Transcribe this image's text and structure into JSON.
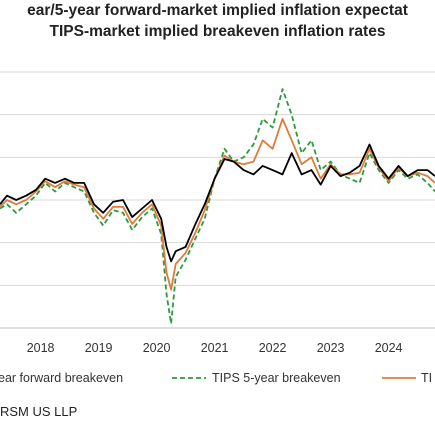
{
  "chart_data": {
    "type": "line",
    "title_lines": [
      "ear/5-year forward-market implied inflation expectat",
      "TIPS-market implied breakeven inflation rates"
    ],
    "xlabel": "",
    "ylabel": "",
    "x_tick_labels": [
      "2018",
      "2019",
      "2020",
      "2021",
      "2022",
      "2023",
      "2024"
    ],
    "x_ticks": [
      2018,
      2019,
      2020,
      2021,
      2022,
      2023,
      2024
    ],
    "xlim": [
      2017.3,
      2024.8
    ],
    "ylim": [
      0.5,
      3.5
    ],
    "y_gridlines": [
      0.5,
      1.0,
      1.5,
      2.0,
      2.5,
      3.0,
      3.5
    ],
    "grid": "horizontal",
    "legend_position": "bottom",
    "series": [
      {
        "name": "ear forward breakeven",
        "color": "#000000",
        "style": "solid",
        "x": [
          2017.3,
          2017.42,
          2017.58,
          2017.75,
          2017.92,
          2018.08,
          2018.25,
          2018.42,
          2018.58,
          2018.75,
          2018.92,
          2019.08,
          2019.25,
          2019.42,
          2019.58,
          2019.75,
          2019.92,
          2020.08,
          2020.17,
          2020.25,
          2020.33,
          2020.5,
          2020.67,
          2020.83,
          2021.0,
          2021.17,
          2021.33,
          2021.5,
          2021.67,
          2021.83,
          2022.0,
          2022.17,
          2022.33,
          2022.5,
          2022.67,
          2022.83,
          2023.0,
          2023.17,
          2023.33,
          2023.5,
          2023.67,
          2023.83,
          2024.0,
          2024.17,
          2024.33,
          2024.5,
          2024.67,
          2024.8
        ],
        "y": [
          1.95,
          2.05,
          2.0,
          2.05,
          2.12,
          2.25,
          2.2,
          2.25,
          2.2,
          2.2,
          1.95,
          1.85,
          1.98,
          2.0,
          1.8,
          1.9,
          2.0,
          1.78,
          1.45,
          1.28,
          1.4,
          1.45,
          1.72,
          1.95,
          2.25,
          2.48,
          2.45,
          2.35,
          2.3,
          2.4,
          2.35,
          2.3,
          2.55,
          2.3,
          2.35,
          2.18,
          2.4,
          2.28,
          2.32,
          2.4,
          2.65,
          2.4,
          2.25,
          2.4,
          2.28,
          2.35,
          2.35,
          2.28
        ]
      },
      {
        "name": "TIPS 5-year breakeven",
        "color": "#2e9a3c",
        "style": "dashed",
        "x": [
          2017.3,
          2017.42,
          2017.58,
          2017.75,
          2017.92,
          2018.08,
          2018.25,
          2018.42,
          2018.58,
          2018.75,
          2018.92,
          2019.08,
          2019.25,
          2019.42,
          2019.58,
          2019.75,
          2019.92,
          2020.08,
          2020.17,
          2020.25,
          2020.33,
          2020.5,
          2020.67,
          2020.83,
          2021.0,
          2021.17,
          2021.33,
          2021.5,
          2021.67,
          2021.83,
          2022.0,
          2022.17,
          2022.33,
          2022.5,
          2022.67,
          2022.83,
          2023.0,
          2023.17,
          2023.33,
          2023.5,
          2023.67,
          2023.83,
          2024.0,
          2024.17,
          2024.33,
          2024.5,
          2024.67,
          2024.8
        ],
        "y": [
          1.9,
          1.95,
          1.85,
          1.95,
          2.05,
          2.2,
          2.1,
          2.2,
          2.15,
          2.1,
          1.85,
          1.7,
          1.88,
          1.85,
          1.65,
          1.8,
          1.9,
          1.6,
          0.9,
          0.55,
          1.1,
          1.3,
          1.55,
          1.78,
          2.25,
          2.6,
          2.45,
          2.5,
          2.65,
          2.95,
          2.85,
          3.3,
          3.0,
          2.55,
          2.7,
          2.35,
          2.45,
          2.3,
          2.25,
          2.2,
          2.55,
          2.35,
          2.2,
          2.35,
          2.25,
          2.3,
          2.2,
          2.1
        ]
      },
      {
        "name": "TI",
        "color": "#e07b39",
        "style": "solid",
        "x": [
          2017.3,
          2017.42,
          2017.58,
          2017.75,
          2017.92,
          2018.08,
          2018.25,
          2018.42,
          2018.58,
          2018.75,
          2018.92,
          2019.08,
          2019.25,
          2019.42,
          2019.58,
          2019.75,
          2019.92,
          2020.08,
          2020.17,
          2020.25,
          2020.33,
          2020.5,
          2020.67,
          2020.83,
          2021.0,
          2021.17,
          2021.33,
          2021.5,
          2021.67,
          2021.83,
          2022.0,
          2022.17,
          2022.33,
          2022.5,
          2022.67,
          2022.83,
          2023.0,
          2023.17,
          2023.33,
          2023.5,
          2023.67,
          2023.83,
          2024.0,
          2024.17,
          2024.33,
          2024.5,
          2024.67,
          2024.8
        ],
        "y": [
          1.92,
          2.0,
          1.95,
          2.0,
          2.1,
          2.22,
          2.15,
          2.22,
          2.18,
          2.15,
          1.9,
          1.78,
          1.92,
          1.92,
          1.72,
          1.85,
          1.95,
          1.7,
          1.15,
          0.95,
          1.25,
          1.38,
          1.62,
          1.88,
          2.25,
          2.52,
          2.45,
          2.42,
          2.45,
          2.7,
          2.6,
          2.95,
          2.7,
          2.42,
          2.5,
          2.25,
          2.42,
          2.3,
          2.3,
          2.32,
          2.6,
          2.38,
          2.22,
          2.38,
          2.28,
          2.32,
          2.28,
          2.2
        ]
      }
    ]
  },
  "legend": {
    "items": [
      {
        "label": "ear forward breakeven",
        "color": "#000000",
        "style": "solid"
      },
      {
        "label": "TIPS 5-year breakeven",
        "color": "#2e9a3c",
        "style": "dashed"
      },
      {
        "label": "TI",
        "color": "#e07b39",
        "style": "solid"
      }
    ]
  },
  "source": "RSM US LLP"
}
